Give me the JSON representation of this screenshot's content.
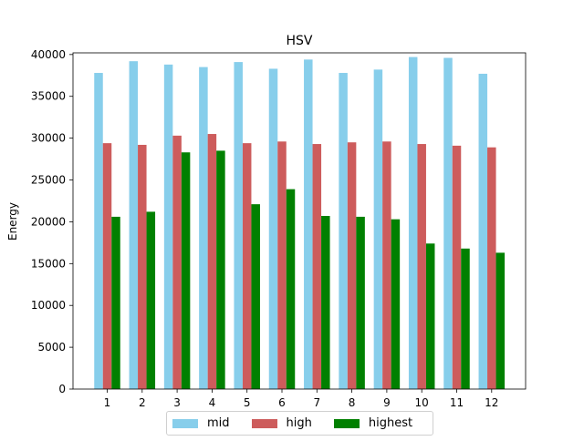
{
  "chart_data": {
    "type": "bar",
    "title": "HSV",
    "xlabel": "",
    "ylabel": "Energy",
    "categories": [
      "1",
      "2",
      "3",
      "4",
      "5",
      "6",
      "7",
      "8",
      "9",
      "10",
      "11",
      "12"
    ],
    "ylim": [
      0,
      40200
    ],
    "yticks": [
      0,
      5000,
      10000,
      15000,
      20000,
      25000,
      30000,
      35000,
      40000
    ],
    "grid": false,
    "legend_position": "bottom-center",
    "series": [
      {
        "name": "mid",
        "color": "#87ceeb",
        "values": [
          37800,
          39200,
          38800,
          38500,
          39100,
          38300,
          39400,
          37800,
          38200,
          39700,
          39600,
          37700
        ]
      },
      {
        "name": "high",
        "color": "#cd5c5c",
        "values": [
          29400,
          29200,
          30300,
          30500,
          29400,
          29600,
          29300,
          29500,
          29600,
          29300,
          29100,
          28900
        ]
      },
      {
        "name": "highest",
        "color": "#008000",
        "values": [
          20600,
          21200,
          28300,
          28500,
          22100,
          23900,
          20700,
          20600,
          20300,
          17400,
          16800,
          16300
        ]
      }
    ]
  }
}
